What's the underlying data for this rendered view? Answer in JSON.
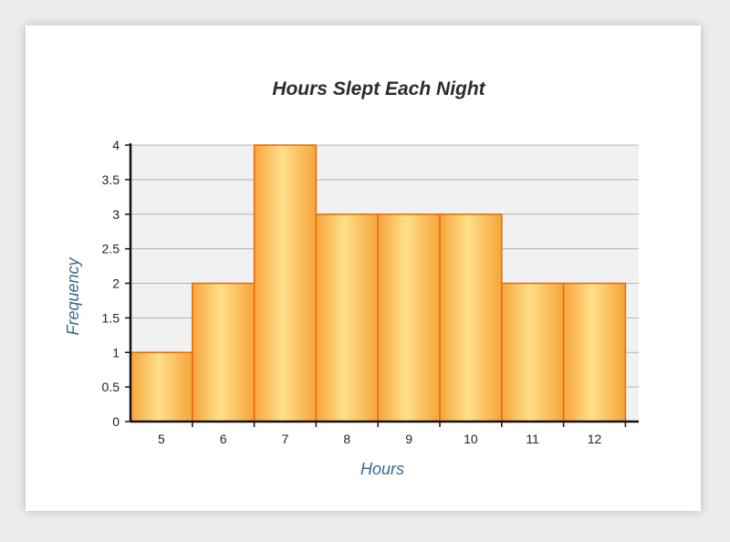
{
  "chart_data": {
    "type": "bar",
    "title": "Hours Slept Each Night",
    "xlabel": "Hours",
    "ylabel": "Frequency",
    "categories": [
      "5",
      "6",
      "7",
      "8",
      "9",
      "10",
      "11",
      "12"
    ],
    "values": [
      1,
      2,
      4,
      3,
      3,
      3,
      2,
      2
    ],
    "ylim": [
      0,
      4
    ],
    "yticks": [
      "0",
      "0.5",
      "1",
      "1.5",
      "2",
      "2.5",
      "3",
      "3.5",
      "4"
    ],
    "grid": true,
    "legend": "none",
    "colors": {
      "bar_edge": "#e8690c",
      "bar_center": "#ffe08a",
      "bar_side": "#f7a43a",
      "plot_background": "#f1f1f1",
      "gridline": "#b4b4b4",
      "axis": "#111111",
      "axis_label": "#3b6a8a"
    }
  }
}
